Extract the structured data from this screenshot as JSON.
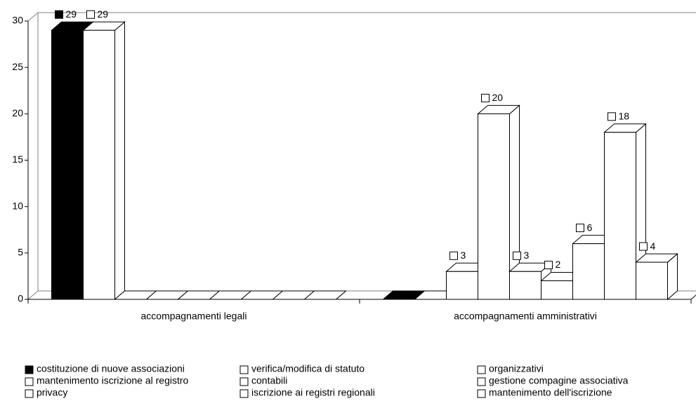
{
  "chart_data": {
    "type": "bar",
    "categories": [
      "accompagnamenti legali",
      "accompagnamenti amministrativi"
    ],
    "series": [
      {
        "name": "costituzione di nuove associazioni",
        "color": "#000000",
        "values": [
          29,
          0
        ]
      },
      {
        "name": "verifica/modifica di statuto",
        "color": "#ffffff",
        "values": [
          29,
          0
        ]
      },
      {
        "name": "organizzativi",
        "color": "#ffffff",
        "values": [
          0,
          3
        ]
      },
      {
        "name": "mantenimento iscrizione al registro",
        "color": "#ffffff",
        "values": [
          0,
          20
        ]
      },
      {
        "name": "contabili",
        "color": "#ffffff",
        "values": [
          0,
          3
        ]
      },
      {
        "name": "gestione compagine associativa",
        "color": "#ffffff",
        "values": [
          0,
          2
        ]
      },
      {
        "name": "privacy",
        "color": "#ffffff",
        "values": [
          0,
          6
        ]
      },
      {
        "name": "iscrizione ai registri regionali",
        "color": "#ffffff",
        "values": [
          0,
          18
        ]
      },
      {
        "name": "mantenimento dell'iscrizione",
        "color": "#ffffff",
        "values": [
          0,
          4
        ]
      }
    ],
    "ylim": [
      0,
      30
    ],
    "yticks": [
      0,
      5,
      10,
      15,
      20,
      25,
      30
    ],
    "legend": "bottom"
  }
}
